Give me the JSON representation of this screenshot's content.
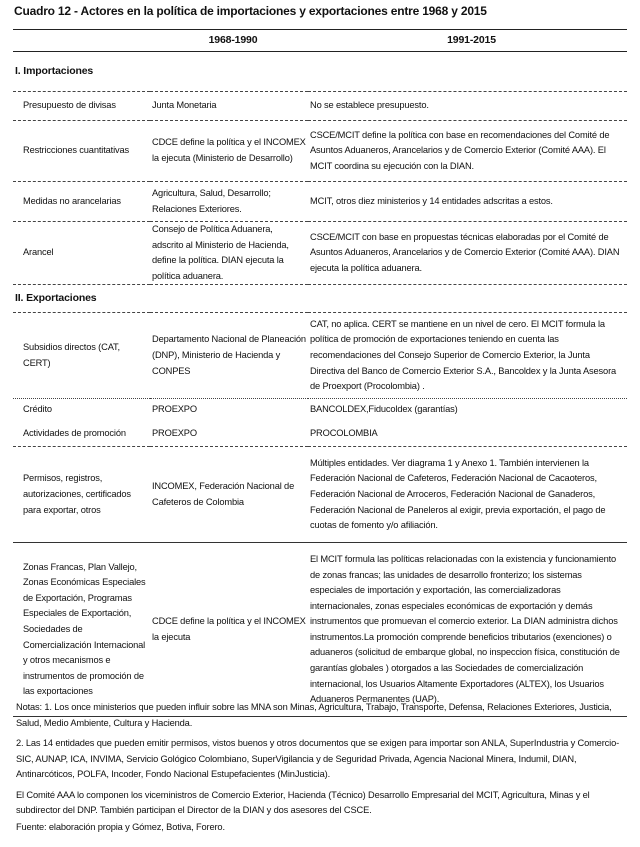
{
  "title": "Cuadro 12 - Actores en la política de importaciones y exportaciones entre 1968 y 2015",
  "columns": [
    "",
    "1968-1990",
    "1991-2015"
  ],
  "sections": {
    "importaciones": {
      "heading": "I. Importaciones",
      "rows": [
        [
          "Presupuesto de divisas",
          "Junta Monetaria",
          "No se establece presupuesto."
        ],
        [
          "Restricciones cuantitativas",
          "CDCE define la política y el INCOMEX la ejecuta (Ministerio de Desarrollo)",
          "CSCE/MCIT define la política con base en recomendaciones del Comité de Asuntos Aduaneros, Arancelarios y de Comercio Exterior (Comité AAA). El  MCIT coordina su ejecución con la DIAN."
        ],
        [
          "Medidas no arancelarias",
          "Agricultura, Salud, Desarrollo; Relaciones Exteriores.",
          "MCIT, otros diez ministerios y 14 entidades adscritas a estos."
        ],
        [
          "Arancel",
          "Consejo de Política Aduanera, adscrito al Ministerio de Hacienda, define la política. DIAN ejecuta la política aduanera.",
          "CSCE/MCIT con base en propuestas técnicas elaboradas por el Comité de Asuntos Aduaneros, Arancelarios y de Comercio Exterior (Comité AAA). DIAN ejecuta la política aduanera."
        ]
      ]
    },
    "exportaciones": {
      "heading": "II. Exportaciones",
      "rows": [
        [
          "Subsidios directos (CAT, CERT)",
          "Departamento Nacional de Planeación (DNP), Ministerio de Hacienda y CONPES",
          "CAT, no aplica. CERT se mantiene en un nivel de cero. El MCIT formula la política de promoción de exportaciones teniendo en cuenta las recomendaciones del Consejo Superior de Comercio Exterior, la Junta Directiva del Banco de Comercio Exterior S.A., Bancoldex y la Junta Asesora de Proexport (Procolombia) ."
        ],
        [
          "Crédito",
          "PROEXPO",
          "BANCOLDEX,Fiducoldex (garantías)"
        ],
        [
          "Actividades de promoción",
          "PROEXPO",
          "PROCOLOMBIA"
        ],
        [
          "Permisos, registros, autorizaciones, certificados para exportar, otros",
          "INCOMEX, Federación Nacional de Cafeteros de Colombia",
          "Múltiples entidades. Ver diagrama 1 y Anexo 1. También intervienen la Federación Nacional de Cafeteros, Federación Nacional de Cacaoteros, Federación Nacional de Arroceros, Federación Nacional de Ganaderos, Federación Nacional de Paneleros al exigir, previa exportación, el pago de cuotas de fomento y/o afiliación."
        ],
        [
          "Zonas Francas, Plan Vallejo, Zonas Económicas Especiales de Exportación, Programas Especiales de Exportación, Sociedades de Comercialización Internacional y otros mecanismos e instrumentos de promoción de las exportaciones",
          "CDCE define la política y el INCOMEX la ejecuta",
          "El MCIT formula las políticas relacionadas con la existencia y funcionamiento de zonas francas; las unidades de desarrollo fronterizo; los sistemas especiales de importación y exportación, las comercializadoras internacionales, zonas especiales económicas de exportación y demás instrumentos que promuevan el comercio exterior. La DIAN administra dichos instrumentos.La promoción comprende beneficios tributarios (exenciones) o aduaneros (solicitud de embarque global, no inspeccion física, constitución de garantías globales ) otorgados a las Sociedades de comercialización internacional, los Usuarios Altamente Exportadores (ALTEX), los Usuarios Aduaneros Permanentes (UAP)."
        ]
      ]
    }
  },
  "notes": [
    "Notas: 1. Los once ministerios que pueden influir sobre las MNA son Minas, Agricultura, Trabajo, Transporte, Defensa, Relaciones Exteriores, Justicia, Salud, Medio Ambiente, Cultura y Hacienda.",
    "2. Las 14 entidades que pueden emitir permisos, vistos buenos y otros documentos que se exigen para importar son ANLA, SuperIndustria y Comercio-SIC, AUNAP, ICA, INVIMA, Servicio Gológico Colombiano, SuperVigilancia y de Seguridad Privada, Agencia Nacional Minera, Indumil, DIAN, Antinarcóticos, POLFA, Incoder, Fondo Nacional Estupefacientes (MinJusticia).",
    "El Comité AAA lo componen los viceministros de Comercio Exterior, Hacienda (Técnico) Desarrollo Empresarial del MCIT, Agricultura, Minas y el subdirector del DNP. También participan el Director de la DIAN y dos asesores del CSCE.",
    "Fuente: elaboración propia y Gómez, Botiva, Forero."
  ]
}
